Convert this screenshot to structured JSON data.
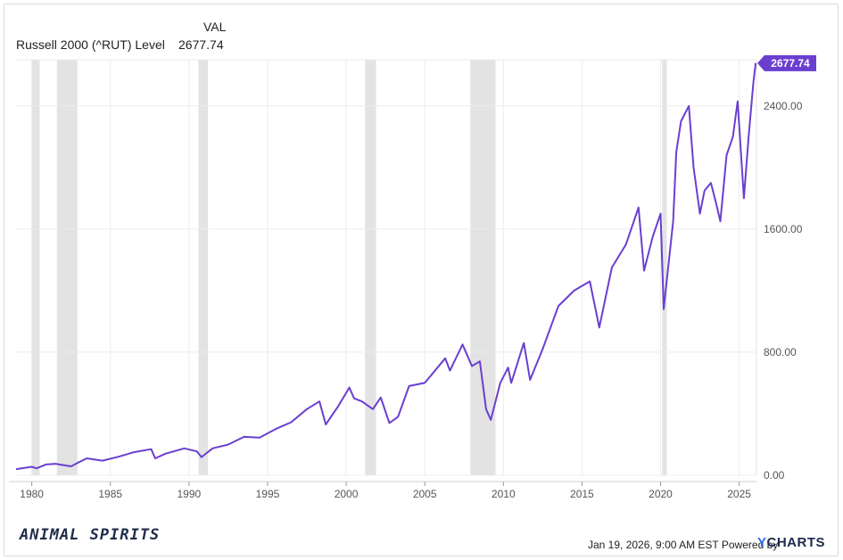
{
  "legend": {
    "header": "VAL",
    "series_name": "Russell 2000 (^RUT) Level",
    "series_value": "2677.74"
  },
  "footer": {
    "brand_left": "ANIMAL SPIRITS",
    "timestamp": "Jan 19, 2026, 9:00 AM EST Powered by",
    "logo_prefix": "Y",
    "logo_rest": "CHARTS"
  },
  "colors": {
    "line": "#6a3fd0",
    "recession": "#e3e3e3",
    "grid": "#ececec",
    "tick_text": "#555555",
    "badge": "#6a3fd0"
  },
  "chart_data": {
    "type": "line",
    "title": "",
    "xlabel": "",
    "ylabel": "",
    "xlim": [
      1979,
      2026.1
    ],
    "ylim": [
      0,
      2700
    ],
    "x_ticks": [
      1980,
      1985,
      1990,
      1995,
      2000,
      2005,
      2010,
      2015,
      2020,
      2025
    ],
    "x_tick_labels": [
      "1980",
      "1985",
      "1990",
      "1995",
      "2000",
      "2005",
      "2010",
      "2015",
      "2020",
      "2025"
    ],
    "y_ticks": [
      0,
      800,
      1600,
      2400
    ],
    "y_tick_labels": [
      "0.00",
      "800.00",
      "1600.00",
      "2400.00"
    ],
    "grid": true,
    "last_value_label": "2677.74",
    "recessions": [
      [
        1980.0,
        1980.5
      ],
      [
        1981.6,
        1982.9
      ],
      [
        1990.6,
        1991.2
      ],
      [
        2001.2,
        2001.9
      ],
      [
        2007.9,
        2009.5
      ],
      [
        2020.1,
        2020.4
      ]
    ],
    "series": [
      {
        "name": "Russell 2000 (^RUT) Level",
        "points": [
          [
            1979.0,
            40
          ],
          [
            1980.0,
            55
          ],
          [
            1980.3,
            45
          ],
          [
            1980.9,
            70
          ],
          [
            1981.5,
            75
          ],
          [
            1982.5,
            58
          ],
          [
            1982.9,
            80
          ],
          [
            1983.5,
            110
          ],
          [
            1984.5,
            95
          ],
          [
            1985.5,
            120
          ],
          [
            1986.5,
            150
          ],
          [
            1987.6,
            170
          ],
          [
            1987.85,
            110
          ],
          [
            1988.5,
            140
          ],
          [
            1989.7,
            175
          ],
          [
            1990.5,
            155
          ],
          [
            1990.8,
            118
          ],
          [
            1991.5,
            175
          ],
          [
            1992.5,
            200
          ],
          [
            1993.5,
            250
          ],
          [
            1994.5,
            245
          ],
          [
            1995.5,
            300
          ],
          [
            1996.5,
            345
          ],
          [
            1997.5,
            430
          ],
          [
            1998.3,
            480
          ],
          [
            1998.7,
            330
          ],
          [
            1999.5,
            450
          ],
          [
            2000.2,
            570
          ],
          [
            2000.5,
            500
          ],
          [
            2001.0,
            480
          ],
          [
            2001.7,
            430
          ],
          [
            2002.2,
            505
          ],
          [
            2002.75,
            340
          ],
          [
            2003.3,
            380
          ],
          [
            2004.0,
            580
          ],
          [
            2005.0,
            600
          ],
          [
            2006.3,
            760
          ],
          [
            2006.6,
            680
          ],
          [
            2007.4,
            850
          ],
          [
            2008.0,
            710
          ],
          [
            2008.5,
            740
          ],
          [
            2008.9,
            430
          ],
          [
            2009.2,
            360
          ],
          [
            2009.8,
            600
          ],
          [
            2010.3,
            700
          ],
          [
            2010.5,
            600
          ],
          [
            2011.3,
            860
          ],
          [
            2011.7,
            620
          ],
          [
            2012.5,
            820
          ],
          [
            2013.5,
            1100
          ],
          [
            2014.5,
            1200
          ],
          [
            2015.5,
            1260
          ],
          [
            2016.1,
            960
          ],
          [
            2016.9,
            1350
          ],
          [
            2017.8,
            1500
          ],
          [
            2018.6,
            1740
          ],
          [
            2018.95,
            1330
          ],
          [
            2019.5,
            1550
          ],
          [
            2020.0,
            1700
          ],
          [
            2020.2,
            1080
          ],
          [
            2020.8,
            1650
          ],
          [
            2021.0,
            2100
          ],
          [
            2021.3,
            2300
          ],
          [
            2021.8,
            2400
          ],
          [
            2022.1,
            2000
          ],
          [
            2022.5,
            1700
          ],
          [
            2022.8,
            1850
          ],
          [
            2023.2,
            1900
          ],
          [
            2023.5,
            1780
          ],
          [
            2023.8,
            1650
          ],
          [
            2024.2,
            2080
          ],
          [
            2024.6,
            2200
          ],
          [
            2024.9,
            2430
          ],
          [
            2025.3,
            1800
          ],
          [
            2025.6,
            2200
          ],
          [
            2025.9,
            2550
          ],
          [
            2026.05,
            2677.74
          ]
        ]
      }
    ]
  }
}
